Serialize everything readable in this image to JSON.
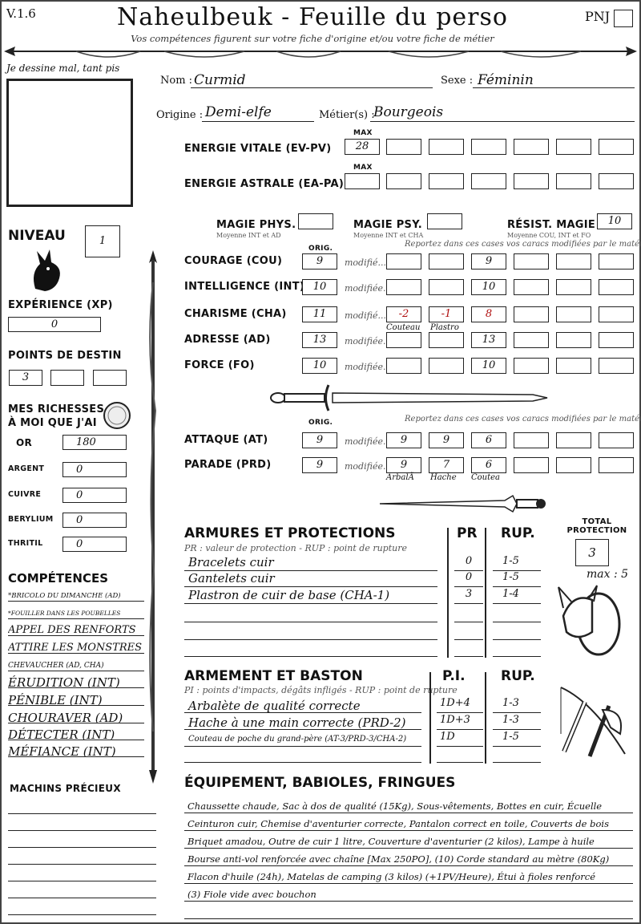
{
  "header": {
    "version": "V.1.6",
    "title": "Naheulbeuk - Feuille du perso",
    "subtitle": "Vos compétences figurent sur votre fiche d'origine et/ou votre fiche de métier",
    "pnj_label": "PNJ"
  },
  "portrait": {
    "caption": "Je dessine mal, tant pis"
  },
  "identity": {
    "nom_label": "Nom :",
    "nom": "Curmid",
    "sexe_label": "Sexe :",
    "sexe": "Féminin",
    "origine_label": "Origine :",
    "origine": "Demi-elfe",
    "metier_label": "Métier(s) :",
    "metier": "Bourgeois"
  },
  "energy": {
    "max_label": "MAX",
    "ev_label": "ENERGIE VITALE (EV-PV)",
    "ev_value": "28",
    "ea_label": "ENERGIE ASTRALE (EA-PA)",
    "ea_value": ""
  },
  "magic": {
    "phys_label": "MAGIE PHYS.",
    "phys_note": "Moyenne INT et AD",
    "phys_value": "",
    "psy_label": "MAGIE PSY.",
    "psy_note": "Moyenne INT et CHA",
    "psy_value": "",
    "resist_label": "RÉSIST. MAGIE",
    "resist_note": "Moyenne COU, INT et FO",
    "resist_value": "10"
  },
  "niveau": {
    "label": "NIVEAU",
    "value": "1"
  },
  "xp": {
    "label": "EXPÉRIENCE (XP)",
    "value": "0"
  },
  "destin": {
    "label": "POINTS DE DESTIN",
    "values": [
      "3",
      "",
      ""
    ]
  },
  "richesses": {
    "label1": "MES RICHESSES",
    "label2": "À MOI QUE J'AI",
    "items": [
      {
        "label": "OR",
        "value": "180"
      },
      {
        "label": "ARGENT",
        "value": "0"
      },
      {
        "label": "CUIVRE",
        "value": "0"
      },
      {
        "label": "BERYLIUM",
        "value": "0"
      },
      {
        "label": "THRITIL",
        "value": "0"
      }
    ]
  },
  "caracs": {
    "orig_label": "ORIG.",
    "note": "Reportez dans ces cases vos caracs modifiées par le matériel",
    "rows": [
      {
        "label": "COURAGE (COU)",
        "orig": "9",
        "mod_label": "modifié...",
        "mods": [
          "",
          "",
          "9",
          "",
          "",
          ""
        ]
      },
      {
        "label": "INTELLIGENCE (INT)",
        "orig": "10",
        "mod_label": "modifiée...",
        "mods": [
          "",
          "",
          "10",
          "",
          "",
          ""
        ]
      },
      {
        "label": "CHARISME (CHA)",
        "orig": "11",
        "mod_label": "modifié...",
        "mods": [
          "-2",
          "-1",
          "8",
          "",
          "",
          ""
        ],
        "notes": [
          "Couteau",
          "Plastro"
        ]
      },
      {
        "label": "ADRESSE (AD)",
        "orig": "13",
        "mod_label": "modifiée...",
        "mods": [
          "",
          "",
          "13",
          "",
          "",
          ""
        ]
      },
      {
        "label": "FORCE (FO)",
        "orig": "10",
        "mod_label": "modifiée...",
        "mods": [
          "",
          "",
          "10",
          "",
          "",
          ""
        ]
      }
    ]
  },
  "combat": {
    "orig_label": "ORIG.",
    "note": "Reportez dans ces cases vos caracs modifiées par le matériel",
    "rows": [
      {
        "label": "ATTAQUE (AT)",
        "orig": "9",
        "mod_label": "modifiée...",
        "mods": [
          "9",
          "9",
          "6",
          "",
          "",
          ""
        ]
      },
      {
        "label": "PARADE (PRD)",
        "orig": "9",
        "mod_label": "modifiée...",
        "mods": [
          "9",
          "7",
          "6",
          "",
          "",
          ""
        ]
      }
    ],
    "notes": [
      "ArbalÃ",
      "Hache",
      "Coutea"
    ]
  },
  "armures": {
    "title": "ARMURES ET PROTECTIONS",
    "note": "PR : valeur de protection - RUP : point de rupture",
    "col_pr": "PR",
    "col_rup": "RUP.",
    "rows": [
      {
        "name": "Bracelets cuir",
        "pr": "0",
        "rup": "1-5"
      },
      {
        "name": "Gantelets cuir",
        "pr": "0",
        "rup": "1-5"
      },
      {
        "name": "Plastron de cuir de base (CHA-1)",
        "pr": "3",
        "rup": "1-4"
      },
      {
        "name": "",
        "pr": "",
        "rup": ""
      },
      {
        "name": "",
        "pr": "",
        "rup": ""
      },
      {
        "name": "",
        "pr": "",
        "rup": ""
      }
    ],
    "total_label": "TOTAL PROTECTION",
    "total": "3",
    "max": "max : 5"
  },
  "armement": {
    "title": "ARMEMENT ET BASTON",
    "note": "PI : points d'impacts, dégâts infligés - RUP : point de rupture",
    "col_pi": "P.I.",
    "col_rup": "RUP.",
    "rows": [
      {
        "name": "Arbalète de qualité correcte",
        "pi": "1D+4",
        "rup": "1-3"
      },
      {
        "name": "Hache à une main correcte (PRD-2)",
        "pi": "1D+3",
        "rup": "1-3"
      },
      {
        "name": "Couteau de poche du grand-père (AT-3/PRD-3/CHA-2)",
        "pi": "1D",
        "rup": "1-5"
      },
      {
        "name": "",
        "pi": "",
        "rup": ""
      }
    ]
  },
  "competences": {
    "title": "COMPÉTENCES",
    "items": [
      "*BRICOLO DU DIMANCHE (AD)",
      "*FOUILLER DANS LES POUBELLES",
      "APPEL DES RENFORTS",
      "ATTIRE LES MONSTRES",
      "CHEVAUCHER (AD, CHA)",
      "ÉRUDITION (INT)",
      "PÉNIBLE (INT)",
      "CHOURAVER (AD)",
      "DÉTECTER (INT)",
      "MÉFIANCE (INT)"
    ]
  },
  "machins": {
    "title": "MACHINS PRÉCIEUX",
    "items": [
      "",
      "",
      "",
      "",
      "",
      "",
      ""
    ]
  },
  "equipement": {
    "title": "ÉQUIPEMENT, BABIOLES, FRINGUES",
    "items": [
      "Chaussette chaude, Sac à dos de qualité (15Kg), Sous-vêtements, Bottes en cuir, Écuelle",
      "Ceinturon cuir, Chemise d'aventurier correcte, Pantalon correct en toile, Couverts de bois",
      "Briquet amadou, Outre de cuir 1 litre, Couverture d'aventurier (2 kilos), Lampe à huile",
      "Bourse anti-vol renforcée avec chaîne [Max 250PO], (10) Corde standard au mètre (80Kg)",
      "Flacon d'huile (24h), Matelas de camping (3 kilos) (+1PV/Heure), Étui à fioles renforcé",
      "(3) Fiole vide avec bouchon",
      ""
    ]
  }
}
